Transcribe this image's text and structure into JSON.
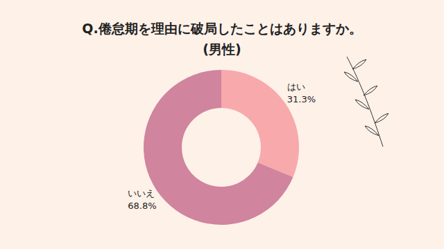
{
  "chart_data": {
    "type": "pie",
    "title": "Q.倦怠期を理由に破局したことはありますか。",
    "subtitle": "(男性)",
    "categories": [
      "はい",
      "いいえ"
    ],
    "values": [
      31.3,
      68.8
    ],
    "value_labels": [
      "31.3%",
      "68.8%"
    ],
    "colors": [
      "#f8a9ac",
      "#d0849d"
    ],
    "data_labels": true
  }
}
